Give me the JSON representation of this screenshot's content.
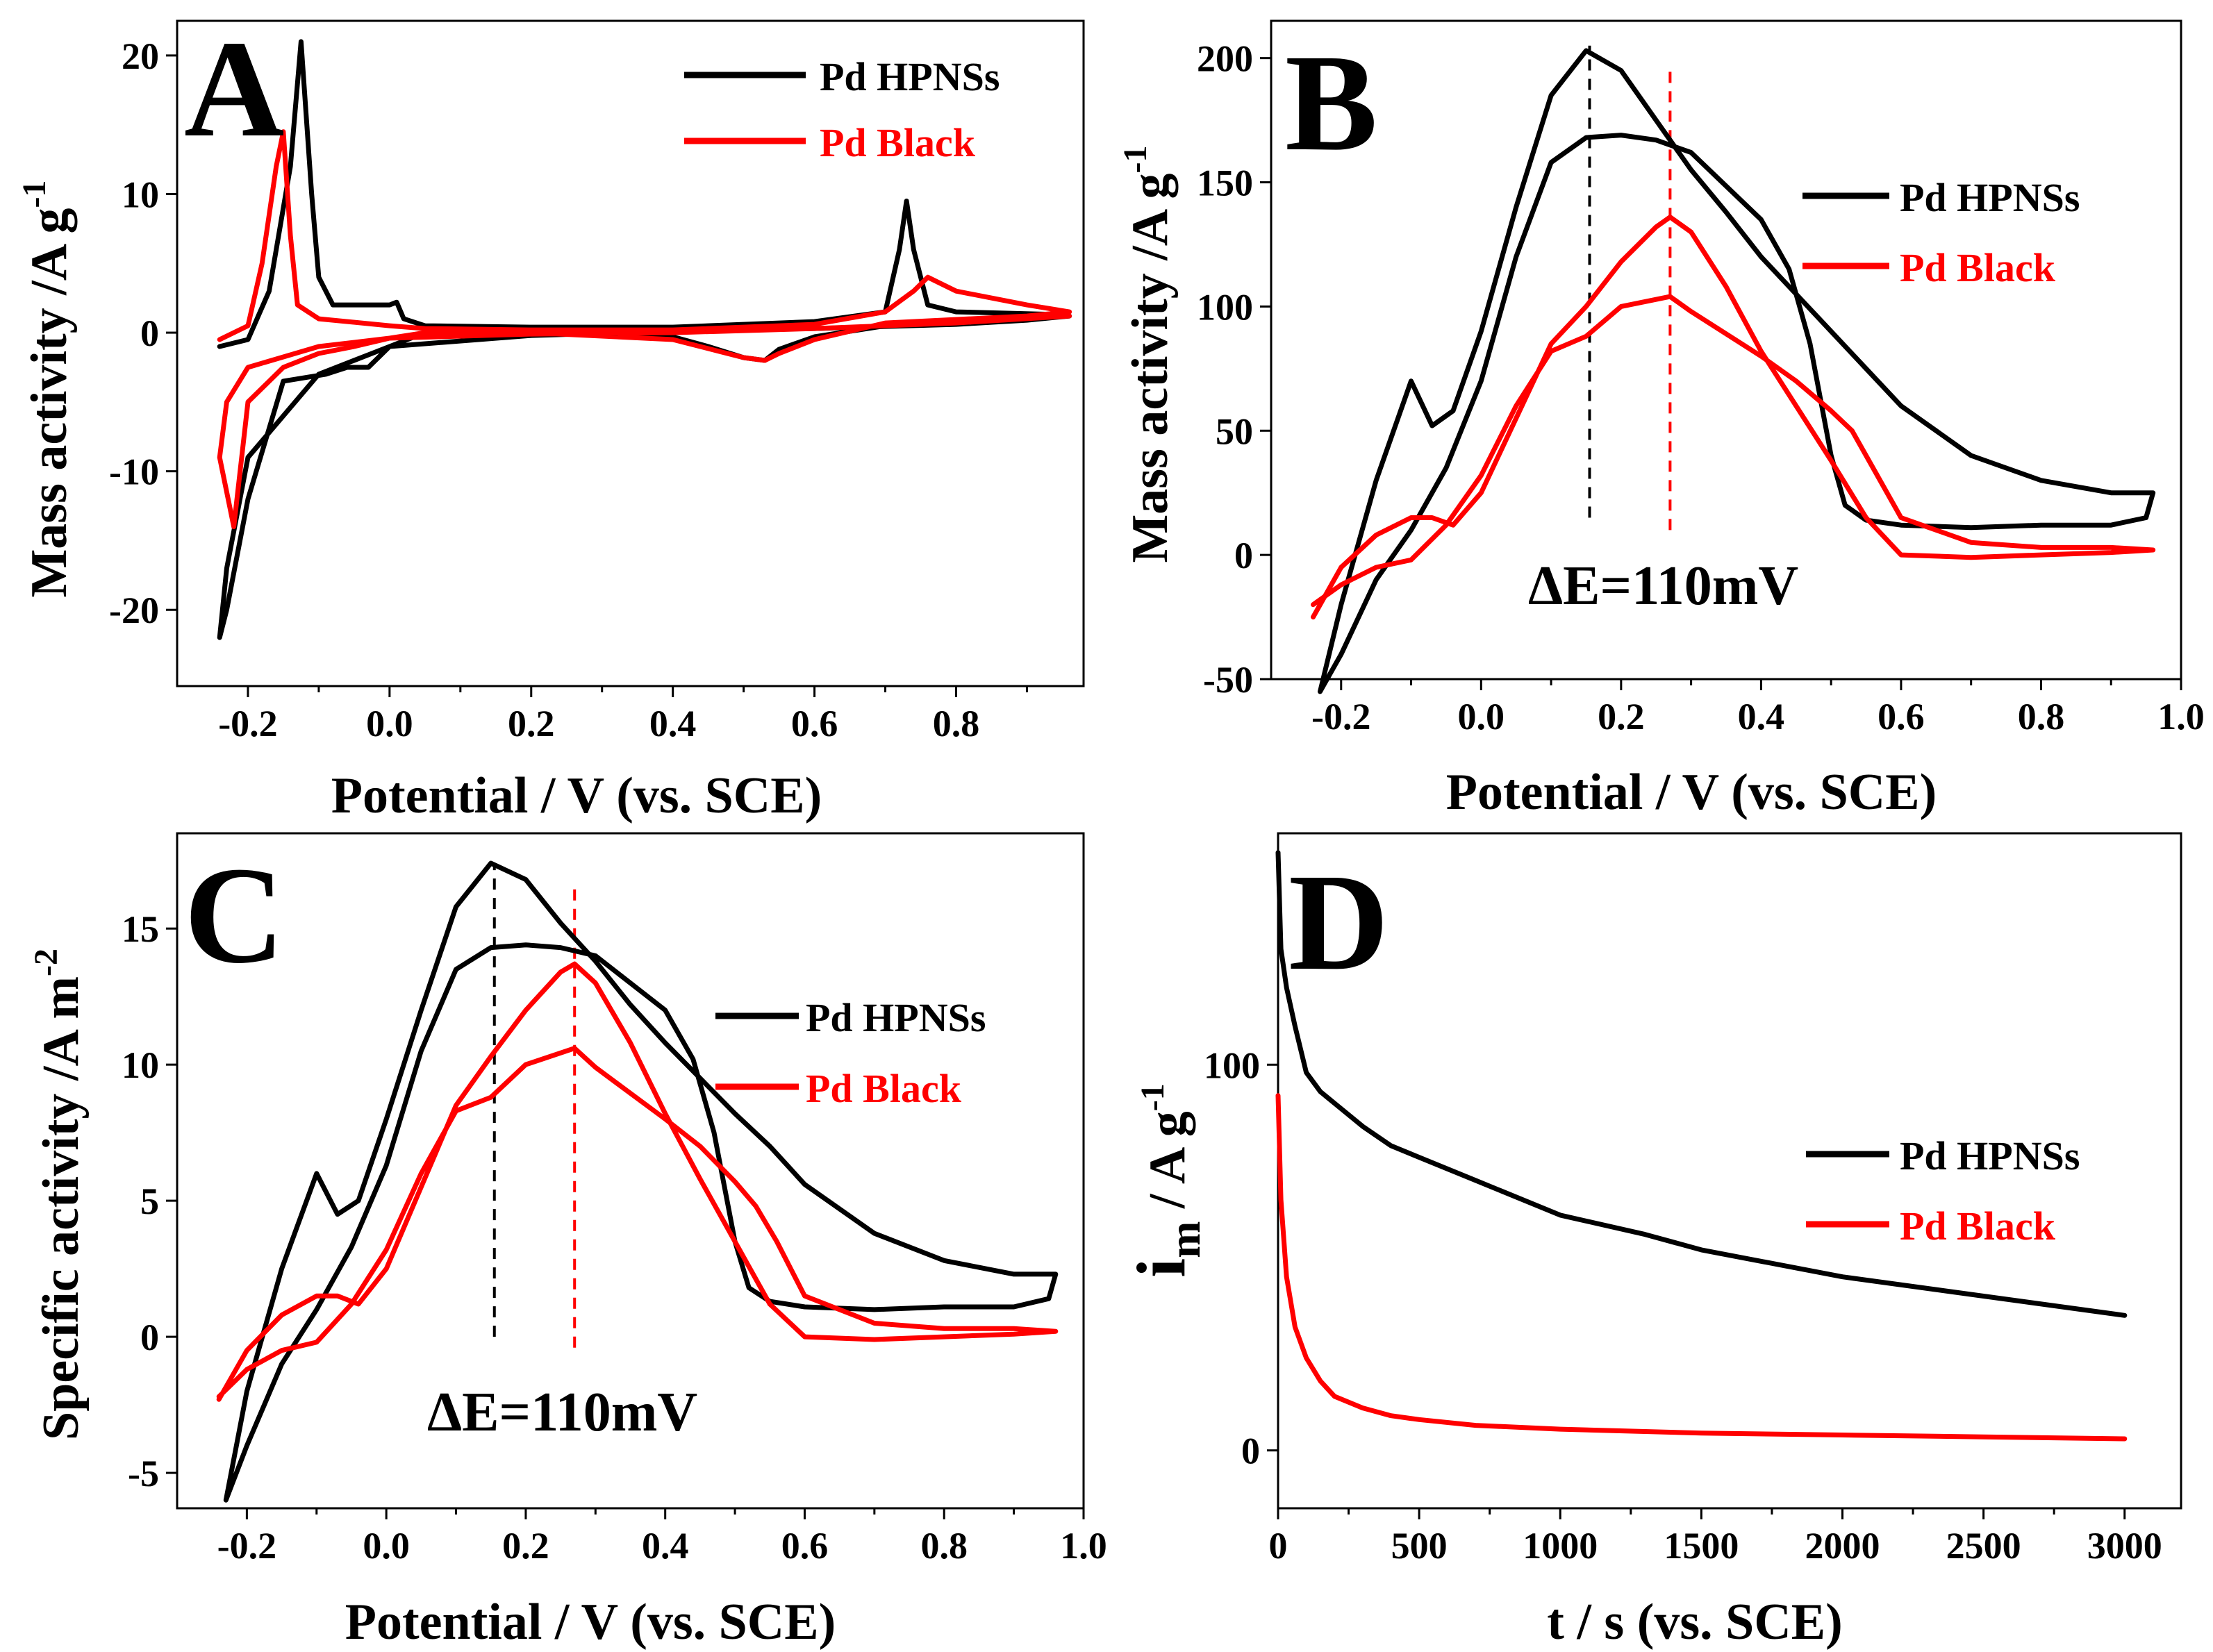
{
  "colors": {
    "hpns": "#000000",
    "black": "#ff0000",
    "axis": "#000000"
  },
  "chart_data": [
    {
      "panel": "A",
      "type": "line",
      "xlabel": "Potential / V (vs. SCE)",
      "ylabel": "Mass activity /A g",
      "ylabel_sup": "-1",
      "xlim": [
        -0.3,
        0.98
      ],
      "ylim": [
        -25.5,
        22.5
      ],
      "xticks": [
        -0.2,
        0.0,
        0.2,
        0.4,
        0.6,
        0.8
      ],
      "xtick_labels": [
        "-0.2",
        "0.0",
        "0.2",
        "0.4",
        "0.6",
        "0.8"
      ],
      "yticks": [
        -20,
        -10,
        0,
        10,
        20
      ],
      "ytick_labels": [
        "-20",
        "-10",
        "0",
        "10",
        "20"
      ],
      "legend": [
        "Pd HPNSs",
        "Pd Black"
      ],
      "legend_position": "top-right",
      "series": [
        {
          "name": "Pd HPNSs",
          "color": "#000000",
          "x": [
            -0.24,
            -0.2,
            -0.17,
            -0.14,
            -0.125,
            -0.11,
            -0.1,
            -0.08,
            0.0,
            0.01,
            0.02,
            0.05,
            0.2,
            0.4,
            0.6,
            0.7,
            0.72,
            0.73,
            0.74,
            0.76,
            0.8,
            0.95,
            0.96,
            0.9,
            0.7,
            0.6,
            0.55,
            0.53,
            0.5,
            0.45,
            0.4,
            0.2,
            0.05,
            0.0,
            -0.03,
            -0.06,
            -0.09,
            -0.15,
            -0.2,
            -0.23,
            -0.24,
            -0.23,
            -0.2,
            -0.1,
            0.0,
            0.2,
            0.4,
            0.6,
            0.8,
            0.9,
            0.95
          ],
          "y": [
            -1.0,
            -0.5,
            3,
            12,
            21,
            10,
            4,
            2,
            2,
            2.2,
            1.0,
            0.5,
            0.4,
            0.4,
            0.8,
            1.5,
            6,
            9.5,
            6,
            2,
            1.5,
            1.3,
            1.2,
            0.9,
            0.5,
            -0.3,
            -1.2,
            -2,
            -1.8,
            -1,
            -0.3,
            0,
            0,
            -1,
            -2.5,
            -2.5,
            -3,
            -3.5,
            -12,
            -20,
            -22,
            -17,
            -9,
            -3,
            -1,
            -0.2,
            0.1,
            0.3,
            0.6,
            0.9,
            1.2
          ]
        },
        {
          "name": "Pd Black",
          "color": "#ff0000",
          "x": [
            -0.24,
            -0.2,
            -0.18,
            -0.16,
            -0.15,
            -0.14,
            -0.13,
            -0.1,
            0.0,
            0.05,
            0.2,
            0.4,
            0.6,
            0.7,
            0.74,
            0.76,
            0.8,
            0.9,
            0.96,
            0.9,
            0.7,
            0.6,
            0.55,
            0.53,
            0.5,
            0.4,
            0.2,
            0.05,
            0.0,
            -0.05,
            -0.1,
            -0.15,
            -0.2,
            -0.22,
            -0.24,
            -0.23,
            -0.2,
            -0.1,
            0.0,
            0.2,
            0.4,
            0.6,
            0.8,
            0.96
          ],
          "y": [
            -0.5,
            0.5,
            5,
            12,
            14.5,
            7,
            2,
            1,
            0.5,
            0.3,
            0.2,
            0.2,
            0.6,
            1.5,
            3,
            4,
            3,
            2,
            1.5,
            1.2,
            0.7,
            -0.5,
            -1.5,
            -2,
            -1.8,
            -0.5,
            0,
            0,
            -0.4,
            -1,
            -1.5,
            -2.5,
            -5,
            -14,
            -9,
            -5,
            -2.5,
            -1,
            -0.4,
            -0.1,
            0,
            0.3,
            0.7,
            1.2
          ]
        }
      ]
    },
    {
      "panel": "B",
      "type": "line",
      "xlabel": "Potential / V (vs. SCE)",
      "ylabel": "Mass activity /A g",
      "ylabel_sup": "-1",
      "xlim": [
        -0.3,
        1.0
      ],
      "ylim": [
        -50,
        215
      ],
      "xticks": [
        -0.2,
        0.0,
        0.2,
        0.4,
        0.6,
        0.8,
        1.0
      ],
      "xtick_labels": [
        "-0.2",
        "0.0",
        "0.2",
        "0.4",
        "0.6",
        "0.8",
        "1.0"
      ],
      "yticks": [
        -50,
        0,
        50,
        100,
        150,
        200
      ],
      "ytick_labels": [
        "-50",
        "0",
        "50",
        "100",
        "150",
        "200"
      ],
      "legend": [
        "Pd HPNSs",
        "Pd Black"
      ],
      "legend_position": "top-right",
      "annotation": "ΔE=110mV",
      "vlines": [
        {
          "x": 0.155,
          "color": "#000000",
          "y0": 15,
          "y1": 205
        },
        {
          "x": 0.27,
          "color": "#ff0000",
          "y0": 10,
          "y1": 195
        }
      ],
      "series": [
        {
          "name": "Pd HPNSs",
          "color": "#000000",
          "x": [
            -0.23,
            -0.2,
            -0.15,
            -0.1,
            -0.07,
            -0.04,
            0.0,
            0.05,
            0.1,
            0.15,
            0.2,
            0.25,
            0.3,
            0.35,
            0.4,
            0.45,
            0.5,
            0.55,
            0.6,
            0.7,
            0.8,
            0.9,
            0.96,
            0.95,
            0.9,
            0.8,
            0.7,
            0.6,
            0.55,
            0.52,
            0.5,
            0.47,
            0.44,
            0.4,
            0.3,
            0.25,
            0.2,
            0.15,
            0.1,
            0.05,
            0.0,
            -0.05,
            -0.1,
            -0.15,
            -0.2,
            -0.23
          ],
          "y": [
            -55,
            -20,
            30,
            70,
            52,
            58,
            90,
            140,
            185,
            203,
            195,
            175,
            155,
            138,
            120,
            105,
            90,
            75,
            60,
            40,
            30,
            25,
            25,
            15,
            12,
            12,
            11,
            12,
            14,
            20,
            40,
            85,
            115,
            135,
            162,
            167,
            169,
            168,
            158,
            120,
            70,
            35,
            10,
            -10,
            -40,
            -55
          ]
        },
        {
          "name": "Pd Black",
          "color": "#ff0000",
          "x": [
            -0.24,
            -0.2,
            -0.15,
            -0.1,
            -0.07,
            -0.04,
            0.0,
            0.05,
            0.1,
            0.15,
            0.2,
            0.25,
            0.27,
            0.3,
            0.35,
            0.4,
            0.45,
            0.5,
            0.55,
            0.6,
            0.7,
            0.8,
            0.9,
            0.96,
            0.9,
            0.8,
            0.7,
            0.6,
            0.56,
            0.53,
            0.5,
            0.45,
            0.4,
            0.3,
            0.27,
            0.2,
            0.15,
            0.1,
            0.05,
            0.0,
            -0.05,
            -0.1,
            -0.15,
            -0.2,
            -0.24
          ],
          "y": [
            -25,
            -5,
            8,
            15,
            15,
            12,
            25,
            55,
            85,
            100,
            118,
            132,
            136,
            130,
            108,
            82,
            60,
            38,
            15,
            0,
            -1,
            0,
            1,
            2,
            3,
            3,
            5,
            15,
            35,
            50,
            58,
            70,
            80,
            98,
            104,
            100,
            88,
            82,
            60,
            32,
            12,
            -2,
            -5,
            -12,
            -20
          ]
        }
      ]
    },
    {
      "panel": "C",
      "type": "line",
      "xlabel": "Potential / V (vs. SCE)",
      "ylabel": "Specific activity /A m",
      "ylabel_sup": "-2",
      "xlim": [
        -0.3,
        1.0
      ],
      "ylim": [
        -6.3,
        18.5
      ],
      "xticks": [
        -0.2,
        0.0,
        0.2,
        0.4,
        0.6,
        0.8,
        1.0
      ],
      "xtick_labels": [
        "-0.2",
        "0.0",
        "0.2",
        "0.4",
        "0.6",
        "0.8",
        "1.0"
      ],
      "yticks": [
        -5,
        0,
        5,
        10,
        15
      ],
      "ytick_labels": [
        "-5",
        "0",
        "5",
        "10",
        "15"
      ],
      "legend": [
        "Pd HPNSs",
        "Pd Black"
      ],
      "legend_position": "right",
      "annotation": "ΔE=110mV",
      "vlines": [
        {
          "x": 0.155,
          "color": "#000000",
          "y0": 0,
          "y1": 17.3
        },
        {
          "x": 0.27,
          "color": "#ff0000",
          "y0": -0.4,
          "y1": 16.6
        }
      ],
      "series": [
        {
          "name": "Pd HPNSs",
          "color": "#000000",
          "x": [
            -0.23,
            -0.2,
            -0.15,
            -0.1,
            -0.07,
            -0.04,
            0.0,
            0.05,
            0.1,
            0.15,
            0.2,
            0.25,
            0.3,
            0.35,
            0.4,
            0.45,
            0.5,
            0.55,
            0.6,
            0.7,
            0.8,
            0.9,
            0.96,
            0.95,
            0.9,
            0.8,
            0.7,
            0.6,
            0.55,
            0.52,
            0.5,
            0.47,
            0.44,
            0.4,
            0.3,
            0.25,
            0.2,
            0.15,
            0.1,
            0.05,
            0.0,
            -0.05,
            -0.1,
            -0.15,
            -0.2,
            -0.23
          ],
          "y": [
            -6.0,
            -2.0,
            2.5,
            6.0,
            4.5,
            5.0,
            8.0,
            12.0,
            15.8,
            17.4,
            16.8,
            15.2,
            13.8,
            12.2,
            10.8,
            9.5,
            8.2,
            7.0,
            5.6,
            3.8,
            2.8,
            2.3,
            2.3,
            1.4,
            1.1,
            1.1,
            1.0,
            1.1,
            1.3,
            1.8,
            3.5,
            7.5,
            10.2,
            12.0,
            14.0,
            14.3,
            14.4,
            14.3,
            13.5,
            10.5,
            6.3,
            3.3,
            1.0,
            -1.0,
            -4.0,
            -6.0
          ]
        },
        {
          "name": "Pd Black",
          "color": "#ff0000",
          "x": [
            -0.24,
            -0.2,
            -0.15,
            -0.1,
            -0.07,
            -0.04,
            0.0,
            0.05,
            0.1,
            0.15,
            0.2,
            0.25,
            0.27,
            0.3,
            0.35,
            0.4,
            0.45,
            0.5,
            0.55,
            0.6,
            0.7,
            0.8,
            0.9,
            0.96,
            0.9,
            0.8,
            0.7,
            0.6,
            0.56,
            0.53,
            0.5,
            0.45,
            0.4,
            0.3,
            0.27,
            0.2,
            0.15,
            0.1,
            0.05,
            0.0,
            -0.05,
            -0.1,
            -0.15,
            -0.2,
            -0.24
          ],
          "y": [
            -2.3,
            -0.5,
            0.8,
            1.5,
            1.5,
            1.2,
            2.5,
            5.5,
            8.5,
            10.3,
            12.0,
            13.4,
            13.7,
            13.0,
            10.8,
            8.2,
            5.8,
            3.5,
            1.2,
            0.0,
            -0.1,
            0.0,
            0.1,
            0.2,
            0.3,
            0.3,
            0.5,
            1.5,
            3.5,
            4.8,
            5.7,
            7.0,
            8.0,
            9.9,
            10.6,
            10.0,
            8.8,
            8.3,
            6.0,
            3.2,
            1.2,
            -0.2,
            -0.5,
            -1.2,
            -2.2
          ]
        }
      ]
    },
    {
      "panel": "D",
      "type": "line",
      "xlabel": "t / s (vs. SCE)",
      "ylabel": "i",
      "ylabel_sub": "m",
      "ylabel_rest": " / A g",
      "ylabel_sup": "-1",
      "xlim": [
        0,
        3200
      ],
      "ylim": [
        -15,
        160
      ],
      "xticks": [
        0,
        500,
        1000,
        1500,
        2000,
        2500,
        3000
      ],
      "xtick_labels": [
        "0",
        "500",
        "1000",
        "1500",
        "2000",
        "2500",
        "3000"
      ],
      "yticks": [
        0,
        100
      ],
      "ytick_labels": [
        "0",
        "100"
      ],
      "legend": [
        "Pd HPNSs",
        "Pd Black"
      ],
      "legend_position": "right",
      "series": [
        {
          "name": "Pd HPNSs",
          "color": "#000000",
          "x": [
            0,
            10,
            30,
            60,
            100,
            150,
            200,
            300,
            400,
            500,
            700,
            1000,
            1300,
            1500,
            2000,
            2500,
            3000
          ],
          "y": [
            155,
            130,
            120,
            110,
            98,
            93,
            90,
            84,
            79,
            76,
            70,
            61,
            56,
            52,
            45,
            40,
            35
          ]
        },
        {
          "name": "Pd Black",
          "color": "#ff0000",
          "x": [
            0,
            10,
            30,
            60,
            100,
            150,
            200,
            300,
            400,
            500,
            700,
            1000,
            1500,
            2000,
            2500,
            3000
          ],
          "y": [
            92,
            65,
            45,
            32,
            24,
            18,
            14,
            11,
            9,
            8,
            6.5,
            5.5,
            4.5,
            4,
            3.5,
            3
          ]
        }
      ]
    }
  ]
}
